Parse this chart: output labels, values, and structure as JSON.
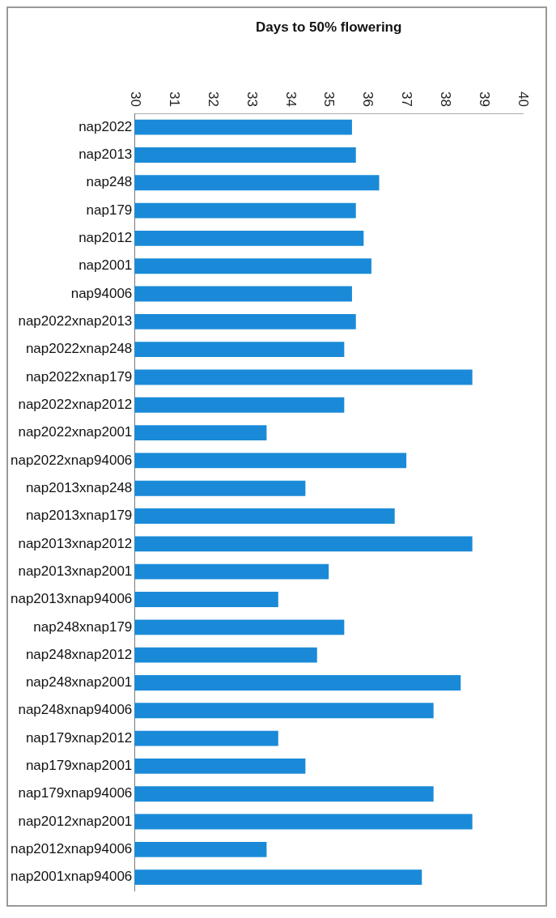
{
  "chart_data": {
    "type": "bar",
    "orientation": "horizontal",
    "xlabel": "Days to 50% flowering",
    "categories": [
      "nap2022",
      "nap2013",
      "nap248",
      "nap179",
      "nap2012",
      "nap2001",
      "nap94006",
      "nap2022xnap2013",
      "nap2022xnap248",
      "nap2022xnap179",
      "nap2022xnap2012",
      "nap2022xnap2001",
      "nap2022xnap94006",
      "nap2013xnap248",
      "nap2013xnap179",
      "nap2013xnap2012",
      "nap2013xnap2001",
      "nap2013xnap94006",
      "nap248xnap179",
      "nap248xnap2012",
      "nap248xnap2001",
      "nap248xnap94006",
      "nap179xnap2012",
      "nap179xnap2001",
      "nap179xnap94006",
      "nap2012xnap2001",
      "nap2012xnap94006",
      "nap2001xnap94006"
    ],
    "values": [
      35.6,
      35.7,
      36.3,
      35.7,
      35.9,
      36.1,
      35.6,
      35.7,
      35.4,
      38.7,
      35.4,
      33.4,
      37.0,
      34.4,
      36.7,
      38.7,
      35.0,
      33.7,
      35.4,
      34.7,
      38.4,
      37.7,
      33.7,
      34.4,
      37.7,
      38.7,
      33.4,
      37.4
    ],
    "color": "#1a8ad8",
    "xlim": [
      30,
      40
    ],
    "xticks": [
      30,
      31,
      32,
      33,
      34,
      35,
      36,
      37,
      38,
      39,
      40
    ],
    "grid": false,
    "legend": false
  }
}
